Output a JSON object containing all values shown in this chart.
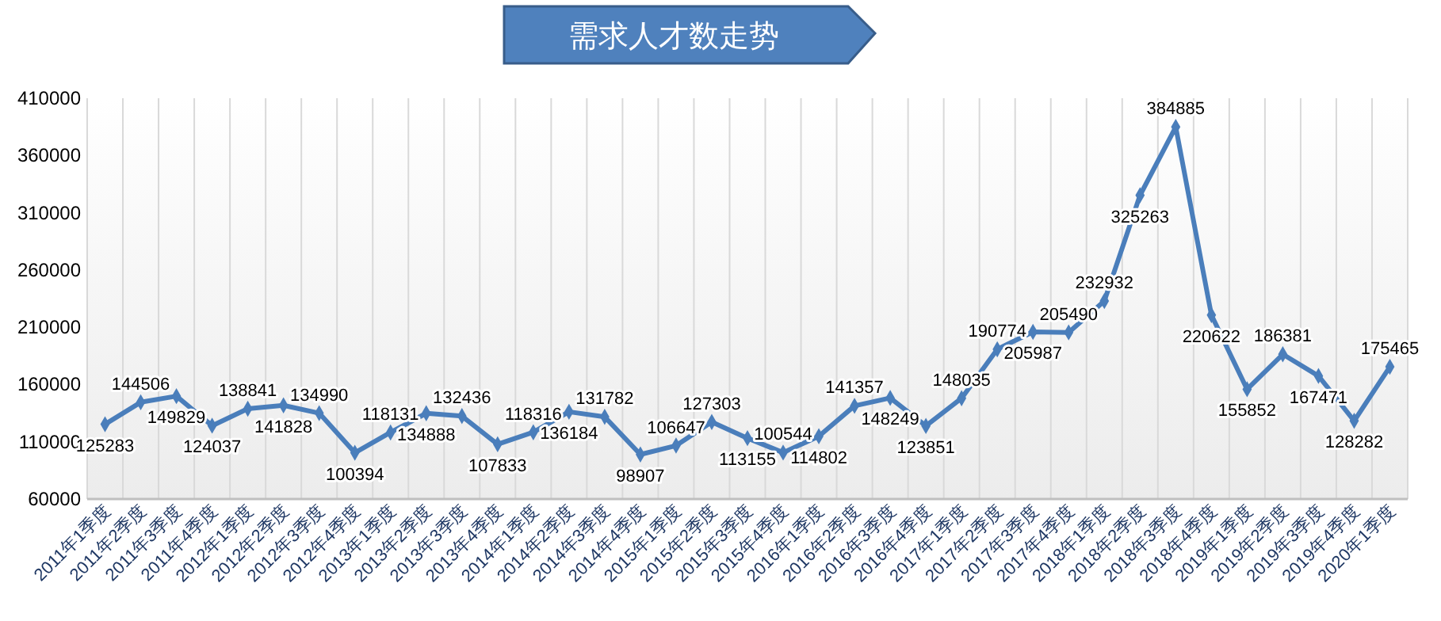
{
  "chart_data": {
    "type": "line",
    "title": "需求人才数走势",
    "categories": [
      "2011年1季度",
      "2011年2季度",
      "2011年3季度",
      "2011年4季度",
      "2012年1季度",
      "2012年2季度",
      "2012年3季度",
      "2012年4季度",
      "2013年1季度",
      "2013年2季度",
      "2013年3季度",
      "2013年4季度",
      "2014年1季度",
      "2014年2季度",
      "2014年3季度",
      "2014年4季度",
      "2015年1季度",
      "2015年2季度",
      "2015年3季度",
      "2015年4季度",
      "2016年1季度",
      "2016年2季度",
      "2016年3季度",
      "2016年4季度",
      "2017年1季度",
      "2017年2季度",
      "2017年3季度",
      "2017年4季度",
      "2018年1季度",
      "2018年2季度",
      "2018年3季度",
      "2018年4季度",
      "2019年1季度",
      "2019年2季度",
      "2019年3季度",
      "2019年4季度",
      "2020年1季度"
    ],
    "series": [
      {
        "color": "#4a7ebb",
        "values": [
          125283,
          144506,
          149829,
          124037,
          138841,
          141828,
          134990,
          100394,
          118131,
          134888,
          132436,
          107833,
          118316,
          136184,
          131782,
          98907,
          106647,
          127303,
          113155,
          100544,
          114802,
          141357,
          148249,
          123851,
          148035,
          190774,
          205987,
          205490,
          232932,
          325263,
          384885,
          220622,
          155852,
          186381,
          167471,
          128282,
          175465
        ]
      }
    ],
    "ylim": [
      60000,
      410000
    ],
    "yticks": [
      60000,
      110000,
      160000,
      210000,
      260000,
      310000,
      360000,
      410000
    ],
    "grid": "x",
    "marker": "diamond",
    "line_style": "solid",
    "data_labels": true
  }
}
